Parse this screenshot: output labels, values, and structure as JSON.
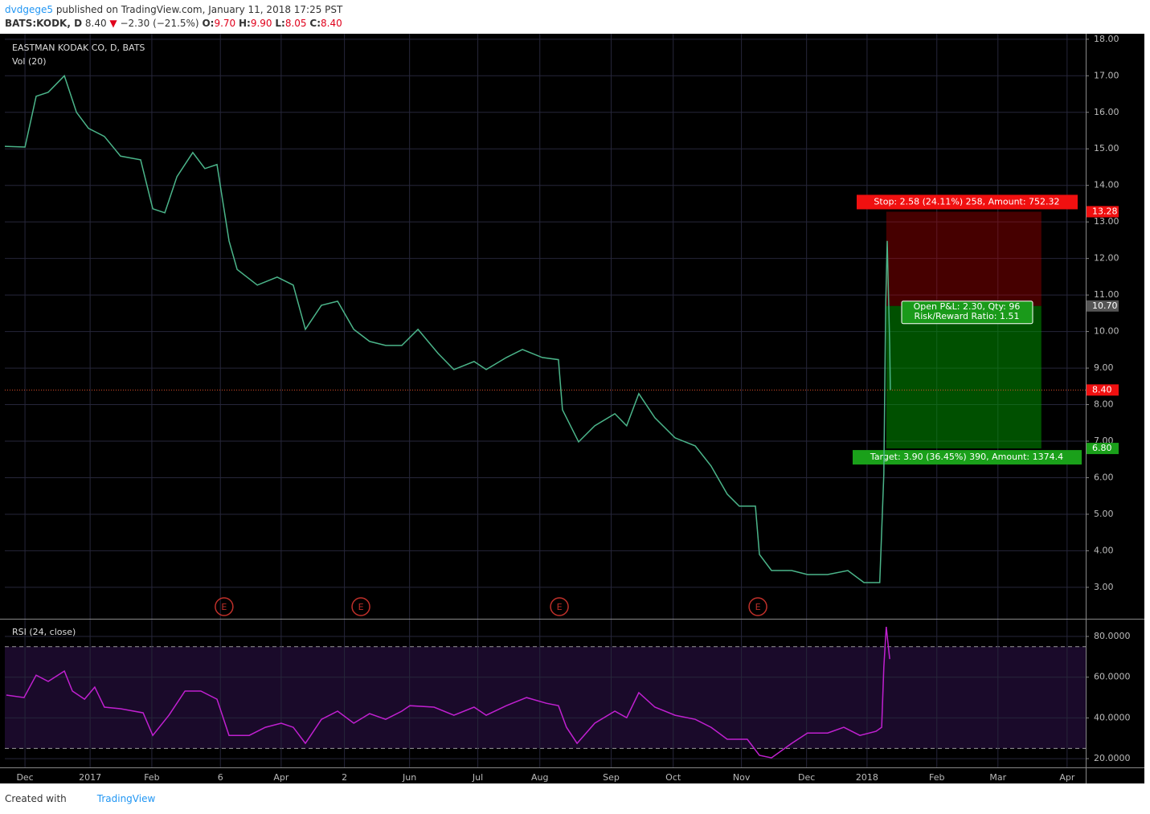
{
  "header": {
    "user": "dvdgege5",
    "published": "published on TradingView.com, January 11, 2018 17:25 PST",
    "symbol": "BATS:KODK, D",
    "last": "8.40",
    "arrow": "▼",
    "change": "−2.30 (−21.5%)",
    "o_label": "O:",
    "open": "9.70",
    "h_label": "H:",
    "high": "9.90",
    "l_label": "L:",
    "low": "8.05",
    "c_label": "C:",
    "close": "8.40"
  },
  "footer": {
    "created": "Created with",
    "brand": "TradingView"
  },
  "chart_data": [
    {
      "type": "line",
      "title": "EASTMAN KODAK CO, D, BATS",
      "subtitle": "Vol (20)",
      "color": "#4bb58a",
      "x": [
        -6.5,
        0,
        3.6,
        7.5,
        12.7,
        16.6,
        20.5,
        25.6,
        30.8,
        37.3,
        41.2,
        45.1,
        49,
        54.1,
        58,
        61.9,
        65.8,
        68.4,
        74.9,
        81.3,
        86.5,
        90.4,
        95.6,
        100.8,
        106,
        111.1,
        116.3,
        121.5,
        126.7,
        133.2,
        138.3,
        144.8,
        148.7,
        155.2,
        160.4,
        166.8,
        172,
        173.3,
        178.5,
        183.7,
        190.2,
        194,
        197.9,
        203.1,
        209.6,
        216.1,
        221.2,
        226.4,
        230.3,
        235.5,
        236.8,
        240.7,
        247.2,
        252.3,
        258.8,
        265.3,
        270.5,
        275.6,
        276.9,
        277.5,
        278,
        278.8,
        279
      ],
      "values": [
        15.07,
        15.05,
        16.44,
        16.55,
        17.0,
        16.0,
        15.56,
        15.34,
        14.8,
        14.7,
        13.36,
        13.25,
        14.24,
        14.9,
        14.46,
        14.57,
        12.48,
        11.7,
        11.27,
        11.49,
        11.27,
        10.06,
        10.72,
        10.83,
        10.06,
        9.73,
        9.62,
        9.62,
        10.06,
        9.4,
        8.96,
        9.18,
        8.96,
        9.29,
        9.51,
        9.29,
        9.23,
        7.86,
        6.98,
        7.42,
        7.75,
        7.42,
        8.3,
        7.64,
        7.09,
        6.87,
        6.32,
        5.55,
        5.22,
        5.22,
        3.9,
        3.46,
        3.46,
        3.35,
        3.35,
        3.46,
        3.13,
        3.13,
        6.1,
        10.72,
        12.48,
        9.62,
        8.4
      ],
      "xlim": [
        -6.5,
        342
      ],
      "xticks": [
        {
          "value": 0,
          "label": "Dec"
        },
        {
          "value": 21,
          "label": "2017"
        },
        {
          "value": 40.9,
          "label": "Feb"
        },
        {
          "value": 63,
          "label": "6"
        },
        {
          "value": 82.6,
          "label": "Apr"
        },
        {
          "value": 103,
          "label": "2"
        },
        {
          "value": 124,
          "label": "Jun"
        },
        {
          "value": 146,
          "label": "Jul"
        },
        {
          "value": 166,
          "label": "Aug"
        },
        {
          "value": 189,
          "label": "Sep"
        },
        {
          "value": 209,
          "label": "Oct"
        },
        {
          "value": 231,
          "label": "Nov"
        },
        {
          "value": 252,
          "label": "Dec"
        },
        {
          "value": 271.5,
          "label": "2018"
        },
        {
          "value": 294,
          "label": "Feb"
        },
        {
          "value": 313.7,
          "label": "Mar"
        },
        {
          "value": 336,
          "label": "Apr"
        }
      ],
      "ylim": [
        2.14,
        18.15
      ],
      "yticks": [
        {
          "value": 3,
          "label": "3.00"
        },
        {
          "value": 4,
          "label": "4.00"
        },
        {
          "value": 5,
          "label": "5.00"
        },
        {
          "value": 6,
          "label": "6.00"
        },
        {
          "value": 7,
          "label": "7.00"
        },
        {
          "value": 8,
          "label": "8.00"
        },
        {
          "value": 9,
          "label": "9.00"
        },
        {
          "value": 10,
          "label": "10.00"
        },
        {
          "value": 11,
          "label": "11.00"
        },
        {
          "value": 12,
          "label": "12.00"
        },
        {
          "value": 13,
          "label": "13.00"
        },
        {
          "value": 14,
          "label": "14.00"
        },
        {
          "value": 15,
          "label": "15.00"
        },
        {
          "value": 16,
          "label": "16.00"
        },
        {
          "value": 17,
          "label": "17.00"
        },
        {
          "value": 18,
          "label": "18.00"
        }
      ],
      "last_price": {
        "value": 8.4,
        "label": "8.40"
      },
      "position": {
        "x": [
          277.7,
          327.7
        ],
        "stop": 13.28,
        "entry": {
          "value": 10.7,
          "label": "10.70"
        },
        "target": {
          "value": 6.8,
          "label": "6.80"
        },
        "stop_text": "Stop: 2.58 (24.11%) 258, Amount: 752.32",
        "pnl_text": "Open P&L: 2.30, Qty: 96",
        "ratio_text": "Risk/Reward Ratio: 1.51",
        "target_text": "Target: 3.90 (36.45%) 390, Amount: 1374.4"
      },
      "earnings": {
        "label": "E",
        "x": [
          64.2,
          108.3,
          172.3,
          236.3
        ]
      }
    },
    {
      "type": "line",
      "title": "RSI (24, close)",
      "color": "#c020d0",
      "x": [
        -6,
        -0.3,
        3.6,
        7.5,
        12.7,
        15.3,
        19.2,
        22.5,
        25.6,
        30.8,
        38.1,
        41.2,
        46.4,
        51.6,
        56.7,
        61.9,
        65.8,
        72.3,
        77.5,
        82.6,
        86.5,
        90.4,
        95.6,
        100.8,
        106,
        111.1,
        116.3,
        121.5,
        124.1,
        131.9,
        138.3,
        144.8,
        148.7,
        155.2,
        161.7,
        168.1,
        172,
        174.6,
        178,
        183.7,
        190.2,
        194,
        197.9,
        203.1,
        209.6,
        216.1,
        221.2,
        226.4,
        232.9,
        236.8,
        240.7,
        247.2,
        252.3,
        258.8,
        264,
        269.2,
        274.4,
        276.2,
        276.9,
        277.7,
        278.8
      ],
      "values": [
        51.2,
        50,
        61,
        57.9,
        63,
        53.2,
        49.2,
        55.1,
        45.3,
        44.5,
        42.5,
        31.4,
        41.3,
        53.2,
        53.2,
        49.2,
        31.4,
        31.4,
        35.4,
        37.4,
        35.4,
        27.5,
        39.3,
        43.3,
        37.4,
        42.1,
        39.3,
        43.3,
        46,
        45.3,
        41.3,
        45.3,
        41.3,
        46,
        50,
        47.2,
        46,
        35.4,
        27.5,
        37.4,
        43.3,
        40.1,
        52.4,
        45.3,
        41.3,
        39.3,
        35.4,
        29.5,
        29.5,
        21.6,
        20.4,
        27.5,
        32.6,
        32.6,
        35.4,
        31.4,
        33.4,
        35.4,
        65,
        84.7,
        68.9
      ],
      "xlim": [
        -6.5,
        342
      ],
      "ylim": [
        15.7,
        88.3
      ],
      "yticks": [
        {
          "value": 20,
          "label": "20.0000"
        },
        {
          "value": 40,
          "label": "40.0000"
        },
        {
          "value": 60,
          "label": "60.0000"
        },
        {
          "value": 80,
          "label": "80.0000"
        }
      ],
      "bands": [
        25,
        75
      ]
    }
  ]
}
